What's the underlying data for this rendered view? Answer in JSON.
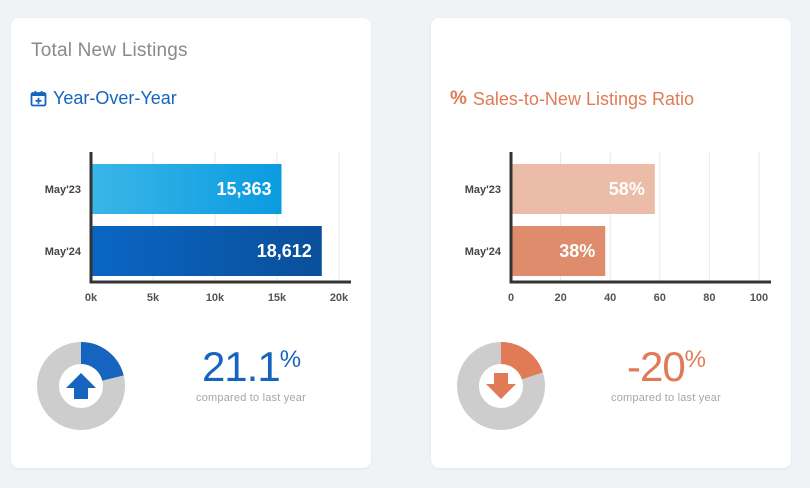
{
  "colors": {
    "blue": "#1565c0",
    "blue_light_start": "#3ab6e8",
    "blue_light_end": "#0a9be0",
    "blue_dark_start": "#0a66c4",
    "blue_dark_end": "#0a4f9a",
    "orange": "#e07b56",
    "orange_light": "#ebbca7",
    "orange_mid": "#df8c6c",
    "donut_gray": "#cdcdcd",
    "axis": "#333333",
    "grid": "#e9e9e9"
  },
  "left_card": {
    "title": "Total New Listings",
    "subtitle": "Year-Over-Year",
    "subtitle_icon": "calendar-plus-icon",
    "kpi": {
      "value": "21.1",
      "unit": "%",
      "caption": "compared to last year",
      "direction": "up",
      "share": 0.211
    }
  },
  "right_card": {
    "subtitle_prefix": "%",
    "subtitle": "Sales-to-New Listings Ratio",
    "kpi": {
      "value": "-20",
      "unit": "%",
      "caption": "compared to last year",
      "direction": "down",
      "share": 0.2
    }
  },
  "chart_data": [
    {
      "type": "bar",
      "orientation": "horizontal",
      "title": "Total New Listings",
      "categories": [
        "May'23",
        "May'24"
      ],
      "values": [
        15363,
        18612
      ],
      "value_labels": [
        "15,363",
        "18,612"
      ],
      "xlim": [
        0,
        20000
      ],
      "ticks": [
        0,
        5000,
        10000,
        15000,
        20000
      ],
      "tick_labels": [
        "0k",
        "5k",
        "10k",
        "15k",
        "20k"
      ],
      "grid": true
    },
    {
      "type": "bar",
      "orientation": "horizontal",
      "title": "Sales-to-New Listings Ratio",
      "categories": [
        "May'23",
        "May'24"
      ],
      "values": [
        58,
        38
      ],
      "value_labels": [
        "58%",
        "38%"
      ],
      "xlim": [
        0,
        100
      ],
      "ticks": [
        0,
        20,
        40,
        60,
        80,
        100
      ],
      "tick_labels": [
        "0",
        "20",
        "40",
        "60",
        "80",
        "100"
      ],
      "grid": true
    }
  ]
}
